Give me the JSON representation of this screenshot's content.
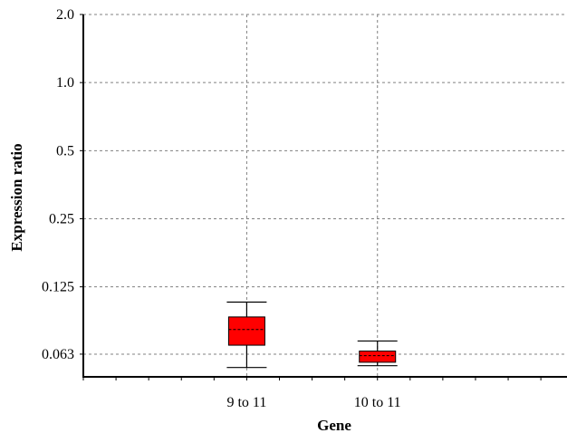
{
  "chart_data": {
    "type": "box",
    "xlabel": "Gene",
    "ylabel": "Expression ratio",
    "y_scale": "log2",
    "ylim": [
      0.05,
      2.0
    ],
    "y_ticks": [
      {
        "value": 2.0,
        "label": "2.0"
      },
      {
        "value": 1.0,
        "label": "1.0"
      },
      {
        "value": 0.5,
        "label": "0.5"
      },
      {
        "value": 0.25,
        "label": "0.25"
      },
      {
        "value": 0.125,
        "label": "0.125"
      },
      {
        "value": 0.063,
        "label": "0.063"
      }
    ],
    "x_gridlines_at": [
      1,
      2
    ],
    "x_range": [
      -0.25,
      3.45
    ],
    "grid": true,
    "box_color": "#ff0000",
    "categories": [
      "9 to 11",
      "10 to 11"
    ],
    "boxes": [
      {
        "label": "9 to 11",
        "x": 1,
        "whisker_low": 0.055,
        "q1": 0.069,
        "median": 0.081,
        "q3": 0.092,
        "whisker_high": 0.107
      },
      {
        "label": "10 to 11",
        "x": 2,
        "whisker_low": 0.056,
        "q1": 0.058,
        "median": 0.062,
        "q3": 0.065,
        "whisker_high": 0.072
      }
    ]
  }
}
